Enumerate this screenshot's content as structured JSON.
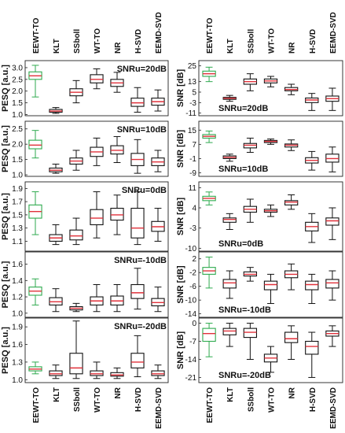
{
  "colors": {
    "highlight": "#2eaa4e",
    "median": "#e0303a",
    "box": "#111111"
  },
  "methods": [
    "EEWT-TO",
    "KLT",
    "SSboll",
    "WT-TO",
    "NR",
    "H-SVD",
    "EEMD-SVD"
  ],
  "highlight_method": "EEWT-TO",
  "column_ylabels": [
    "PESQ [a.u.]",
    "SNR [dB]"
  ],
  "chart_data": [
    {
      "type": "box",
      "column": 0,
      "row": 0,
      "ylabel": "PESQ [a.u.]",
      "annotation": "SNRu=20dB",
      "ylim": [
        0.95,
        3.3
      ],
      "yticks": [
        1.0,
        1.5,
        2.0,
        2.5,
        3.0
      ],
      "tick_labels": [
        "1.0",
        "1.5",
        "2.0",
        "2.5",
        "3.0"
      ],
      "boxes": [
        {
          "min": 1.75,
          "q1": 2.5,
          "median": 2.65,
          "q3": 2.82,
          "max": 3.1
        },
        {
          "min": 1.05,
          "q1": 1.1,
          "median": 1.15,
          "q3": 1.22,
          "max": 1.3
        },
        {
          "min": 1.5,
          "q1": 1.8,
          "median": 1.95,
          "q3": 2.1,
          "max": 2.45
        },
        {
          "min": 2.1,
          "q1": 2.35,
          "median": 2.5,
          "q3": 2.7,
          "max": 2.95
        },
        {
          "min": 1.95,
          "q1": 2.2,
          "median": 2.35,
          "q3": 2.5,
          "max": 2.8
        },
        {
          "min": 1.1,
          "q1": 1.35,
          "median": 1.5,
          "q3": 1.7,
          "max": 2.15
        },
        {
          "min": 1.15,
          "q1": 1.4,
          "median": 1.55,
          "q3": 1.7,
          "max": 2.05
        }
      ]
    },
    {
      "type": "box",
      "column": 0,
      "row": 1,
      "ylabel": "PESQ [a.u.]",
      "annotation": "SNRu=10dB",
      "ylim": [
        0.95,
        2.75
      ],
      "yticks": [
        1.0,
        1.5,
        2.0,
        2.5
      ],
      "tick_labels": [
        "1.0",
        "1.5",
        "2.0",
        "2.5"
      ],
      "boxes": [
        {
          "min": 1.55,
          "q1": 1.85,
          "median": 1.97,
          "q3": 2.13,
          "max": 2.45
        },
        {
          "min": 1.05,
          "q1": 1.1,
          "median": 1.15,
          "q3": 1.22,
          "max": 1.35
        },
        {
          "min": 1.15,
          "q1": 1.35,
          "median": 1.45,
          "q3": 1.55,
          "max": 1.8
        },
        {
          "min": 1.3,
          "q1": 1.6,
          "median": 1.75,
          "q3": 1.9,
          "max": 2.2
        },
        {
          "min": 1.4,
          "q1": 1.68,
          "median": 1.8,
          "q3": 1.95,
          "max": 2.25
        },
        {
          "min": 1.05,
          "q1": 1.3,
          "median": 1.5,
          "q3": 1.7,
          "max": 2.15
        },
        {
          "min": 1.1,
          "q1": 1.3,
          "median": 1.42,
          "q3": 1.55,
          "max": 1.8
        }
      ]
    },
    {
      "type": "box",
      "column": 0,
      "row": 2,
      "ylabel": "PESQ [a.u.]",
      "annotation": "SNRu=0dB",
      "ylim": [
        0.95,
        2.0
      ],
      "yticks": [
        1.1,
        1.3,
        1.5,
        1.7,
        1.9
      ],
      "tick_labels": [
        "1.1",
        "1.3",
        "1.5",
        "1.7",
        "1.9"
      ],
      "boxes": [
        {
          "min": 1.2,
          "q1": 1.45,
          "median": 1.55,
          "q3": 1.65,
          "max": 1.85
        },
        {
          "min": 1.05,
          "q1": 1.1,
          "median": 1.15,
          "q3": 1.2,
          "max": 1.35
        },
        {
          "min": 1.05,
          "q1": 1.12,
          "median": 1.18,
          "q3": 1.27,
          "max": 1.45
        },
        {
          "min": 1.15,
          "q1": 1.35,
          "median": 1.45,
          "q3": 1.58,
          "max": 1.85
        },
        {
          "min": 1.2,
          "q1": 1.42,
          "median": 1.5,
          "q3": 1.6,
          "max": 1.8
        },
        {
          "min": 1.05,
          "q1": 1.15,
          "median": 1.3,
          "q3": 1.6,
          "max": 1.85
        },
        {
          "min": 1.1,
          "q1": 1.25,
          "median": 1.32,
          "q3": 1.4,
          "max": 1.6
        }
      ]
    },
    {
      "type": "box",
      "column": 0,
      "row": 3,
      "ylabel": "PESQ [a.u.]",
      "annotation": "SNRu=-10dB",
      "ylim": [
        0.95,
        1.75
      ],
      "yticks": [
        1.0,
        1.2,
        1.4,
        1.6
      ],
      "tick_labels": [
        "1.0",
        "1.2",
        "1.4",
        "1.6"
      ],
      "boxes": [
        {
          "min": 1.1,
          "q1": 1.22,
          "median": 1.27,
          "q3": 1.32,
          "max": 1.42
        },
        {
          "min": 1.02,
          "q1": 1.1,
          "median": 1.14,
          "q3": 1.19,
          "max": 1.3
        },
        {
          "min": 1.02,
          "q1": 1.04,
          "median": 1.06,
          "q3": 1.08,
          "max": 1.12
        },
        {
          "min": 1.02,
          "q1": 1.1,
          "median": 1.15,
          "q3": 1.2,
          "max": 1.35
        },
        {
          "min": 1.02,
          "q1": 1.1,
          "median": 1.15,
          "q3": 1.21,
          "max": 1.35
        },
        {
          "min": 1.05,
          "q1": 1.18,
          "median": 1.25,
          "q3": 1.35,
          "max": 1.55
        },
        {
          "min": 1.02,
          "q1": 1.09,
          "median": 1.13,
          "q3": 1.18,
          "max": 1.32
        }
      ]
    },
    {
      "type": "box",
      "column": 0,
      "row": 4,
      "ylabel": "PESQ [a.u.]",
      "annotation": "SNRu=-20dB",
      "ylim": [
        0.95,
        2.05
      ],
      "yticks": [
        1.0,
        1.3,
        1.6,
        1.9
      ],
      "tick_labels": [
        "1.0",
        "1.3",
        "1.6",
        "1.9"
      ],
      "boxes": [
        {
          "min": 1.1,
          "q1": 1.15,
          "median": 1.18,
          "q3": 1.22,
          "max": 1.3
        },
        {
          "min": 1.02,
          "q1": 1.07,
          "median": 1.1,
          "q3": 1.15,
          "max": 1.25
        },
        {
          "min": 1.02,
          "q1": 1.1,
          "median": 1.2,
          "q3": 1.45,
          "max": 2.0
        },
        {
          "min": 1.02,
          "q1": 1.07,
          "median": 1.1,
          "q3": 1.15,
          "max": 1.3
        },
        {
          "min": 1.02,
          "q1": 1.06,
          "median": 1.08,
          "q3": 1.12,
          "max": 1.2
        },
        {
          "min": 1.05,
          "q1": 1.2,
          "median": 1.3,
          "q3": 1.45,
          "max": 1.75
        },
        {
          "min": 1.02,
          "q1": 1.07,
          "median": 1.1,
          "q3": 1.15,
          "max": 1.25
        }
      ]
    },
    {
      "type": "box",
      "column": 1,
      "row": 0,
      "ylabel": "SNR [dB]",
      "annotation": "SNRu=20dB",
      "ylim": [
        -13,
        29
      ],
      "yticks": [
        -11,
        -3,
        5,
        13,
        25
      ],
      "tick_labels": [
        "-11",
        "-3",
        "5",
        "13",
        "25"
      ],
      "boxes": [
        {
          "min": 13,
          "q1": 17,
          "median": 19,
          "q3": 21,
          "max": 24
        },
        {
          "min": -2,
          "q1": -0.5,
          "median": 0.3,
          "q3": 1,
          "max": 2.5
        },
        {
          "min": 6,
          "q1": 11,
          "median": 13,
          "q3": 15,
          "max": 19
        },
        {
          "min": 9,
          "q1": 12,
          "median": 13.5,
          "q3": 15,
          "max": 17
        },
        {
          "min": 3,
          "q1": 6,
          "median": 7,
          "q3": 8.5,
          "max": 11
        },
        {
          "min": -9,
          "q1": -3,
          "median": -1,
          "q3": 0.5,
          "max": 4
        },
        {
          "min": -9,
          "q1": -2,
          "median": 0,
          "q3": 2,
          "max": 8
        }
      ]
    },
    {
      "type": "box",
      "column": 1,
      "row": 1,
      "ylabel": "SNR [dB]",
      "annotation": "SNRu=10dB",
      "ylim": [
        -11,
        20
      ],
      "yticks": [
        -9,
        -1,
        7,
        15
      ],
      "tick_labels": [
        "-9",
        "-1",
        "7",
        "15"
      ],
      "boxes": [
        {
          "min": 8,
          "q1": 10.5,
          "median": 11.5,
          "q3": 12.5,
          "max": 14.5
        },
        {
          "min": -2.5,
          "q1": -1,
          "median": -0.3,
          "q3": 0.5,
          "max": 1.5
        },
        {
          "min": 2.5,
          "q1": 5,
          "median": 6.5,
          "q3": 7.5,
          "max": 10.5
        },
        {
          "min": 7,
          "q1": 8,
          "median": 8.7,
          "q3": 9.2,
          "max": 10
        },
        {
          "min": 3.5,
          "q1": 5.5,
          "median": 6.5,
          "q3": 7.2,
          "max": 9.5
        },
        {
          "min": -7.5,
          "q1": -3.5,
          "median": -2,
          "q3": -0.5,
          "max": 3
        },
        {
          "min": -8.5,
          "q1": -3,
          "median": -1,
          "q3": 1.5,
          "max": 5.5
        }
      ]
    },
    {
      "type": "box",
      "column": 1,
      "row": 2,
      "ylabel": "SNR [dB]",
      "annotation": "SNRu=0dB",
      "ylim": [
        -11,
        13
      ],
      "yticks": [
        -10,
        -3,
        4,
        11
      ],
      "tick_labels": [
        "-10",
        "-3",
        "4",
        "11"
      ],
      "boxes": [
        {
          "min": 5,
          "q1": 6.5,
          "median": 7.3,
          "q3": 8,
          "max": 9.5
        },
        {
          "min": -3.5,
          "q1": -1,
          "median": 0,
          "q3": 0.5,
          "max": 2
        },
        {
          "min": -1,
          "q1": 2.5,
          "median": 3.5,
          "q3": 4.5,
          "max": 7
        },
        {
          "min": 1,
          "q1": 2.5,
          "median": 3,
          "q3": 3.5,
          "max": 5
        },
        {
          "min": 3.5,
          "q1": 5,
          "median": 6,
          "q3": 6.5,
          "max": 8.5
        },
        {
          "min": -8,
          "q1": -4,
          "median": -2.5,
          "q3": -1,
          "max": 2
        },
        {
          "min": -7,
          "q1": -2,
          "median": -0.5,
          "q3": 0.5,
          "max": 4
        }
      ]
    },
    {
      "type": "box",
      "column": 1,
      "row": 3,
      "ylabel": "SNR [dB]",
      "annotation": "SNRu=-10dB",
      "ylim": [
        -15,
        4
      ],
      "yticks": [
        -14,
        -10,
        -6,
        -2,
        2
      ],
      "tick_labels": [
        "-14",
        "-10",
        "-6",
        "-2",
        "2"
      ],
      "boxes": [
        {
          "min": -6.5,
          "q1": -2.5,
          "median": -1.5,
          "q3": -0.5,
          "max": 2.5
        },
        {
          "min": -9.5,
          "q1": -6.5,
          "median": -5,
          "q3": -4,
          "max": -1.5
        },
        {
          "min": -4.5,
          "q1": -3,
          "median": -2.5,
          "q3": -1.8,
          "max": -0.5
        },
        {
          "min": -11,
          "q1": -7,
          "median": -5.5,
          "q3": -4.5,
          "max": -2.5
        },
        {
          "min": -7,
          "q1": -3.5,
          "median": -2.5,
          "q3": -1.5,
          "max": 0.5
        },
        {
          "min": -11,
          "q1": -7,
          "median": -5.5,
          "q3": -4.5,
          "max": -2.5
        },
        {
          "min": -10,
          "q1": -6.5,
          "median": -5,
          "q3": -4,
          "max": -1.5
        }
      ]
    },
    {
      "type": "box",
      "column": 1,
      "row": 4,
      "ylabel": "SNR [dB]",
      "annotation": "SNRu=-20dB",
      "ylim": [
        -23,
        2
      ],
      "yticks": [
        -21,
        -14,
        -7,
        0
      ],
      "tick_labels": [
        "-21",
        "-14",
        "-7",
        "0"
      ],
      "boxes": [
        {
          "min": -13,
          "q1": -7,
          "median": -4,
          "q3": -2,
          "max": 0
        },
        {
          "min": -9,
          "q1": -4.5,
          "median": -3,
          "q3": -2,
          "max": 0
        },
        {
          "min": -14,
          "q1": -5.5,
          "median": -3.5,
          "q3": -2,
          "max": 0
        },
        {
          "min": -19,
          "q1": -15,
          "median": -13.5,
          "q3": -12,
          "max": -9
        },
        {
          "min": -14,
          "q1": -7.5,
          "median": -6,
          "q3": -3.5,
          "max": -1
        },
        {
          "min": -21,
          "q1": -12,
          "median": -9,
          "q3": -7,
          "max": -3.5
        },
        {
          "min": -9,
          "q1": -5,
          "median": -4,
          "q3": -3,
          "max": -1
        }
      ]
    }
  ]
}
